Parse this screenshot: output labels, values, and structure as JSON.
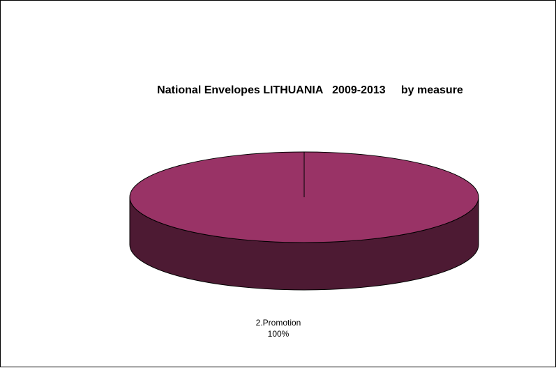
{
  "chart_data": {
    "type": "pie",
    "title": "National Envelopes LITHUANIA   2009-2013     by measure",
    "categories": [
      "2.Promotion"
    ],
    "values": [
      100
    ],
    "data_labels": [
      {
        "name": "2.Promotion",
        "percent": "100%"
      }
    ],
    "colors": {
      "top": "#993366",
      "side": "#4d1a33",
      "outline": "#000000"
    },
    "style": "3d-pie",
    "legend": "none"
  }
}
